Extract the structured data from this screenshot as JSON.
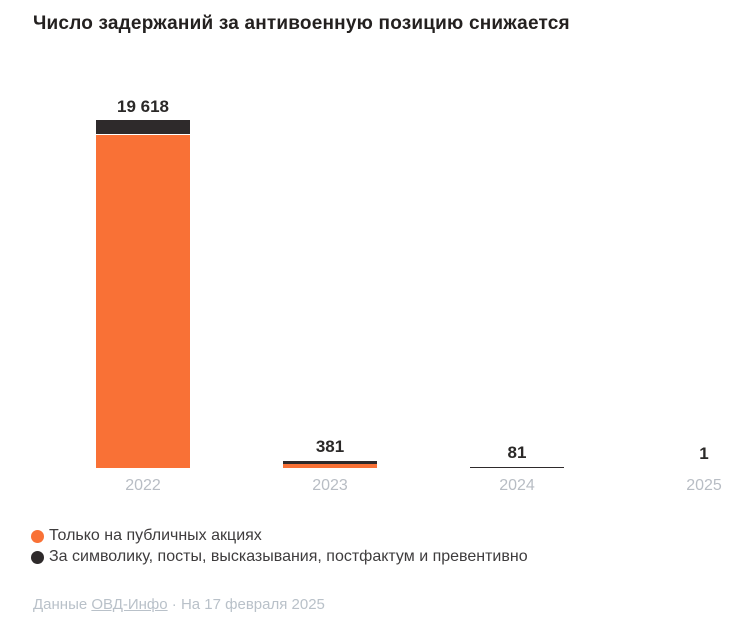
{
  "title": "Число задержаний за антивоенную позицию снижается",
  "chart_data": {
    "type": "bar",
    "stacked": true,
    "categories": [
      "2022",
      "2023",
      "2024",
      "2025"
    ],
    "totals": [
      19618,
      381,
      81,
      1
    ],
    "total_labels": [
      "19 618",
      "381",
      "81",
      "1"
    ],
    "series": [
      {
        "name": "Только на публичных акциях",
        "color": "#f97136",
        "values": [
          18827,
          200,
          0,
          0
        ]
      },
      {
        "name": "За символику, посты, высказывания, постфактум и превентивно",
        "color": "#2e2a2b",
        "values": [
          791,
          181,
          81,
          1
        ]
      }
    ],
    "xlabel": "",
    "ylabel": "",
    "ylim": [
      0,
      19618
    ],
    "grid": false,
    "legend_position": "bottom"
  },
  "legend": {
    "items": [
      {
        "label": "Только на публичных акциях",
        "color": "#f97136"
      },
      {
        "label": "За символику, посты, высказывания, постфактум и превентивно",
        "color": "#2e2a2b"
      }
    ]
  },
  "footer": {
    "prefix": "Данные ",
    "link": "ОВД-Инфо",
    "separator": "·",
    "suffix": " На 17 февраля 2025"
  },
  "colors": {
    "orange": "#f97136",
    "black": "#2e2a2b",
    "axis_label": "#b8bdc4",
    "footer_text": "#b9c1c9",
    "title_text": "#242120"
  }
}
